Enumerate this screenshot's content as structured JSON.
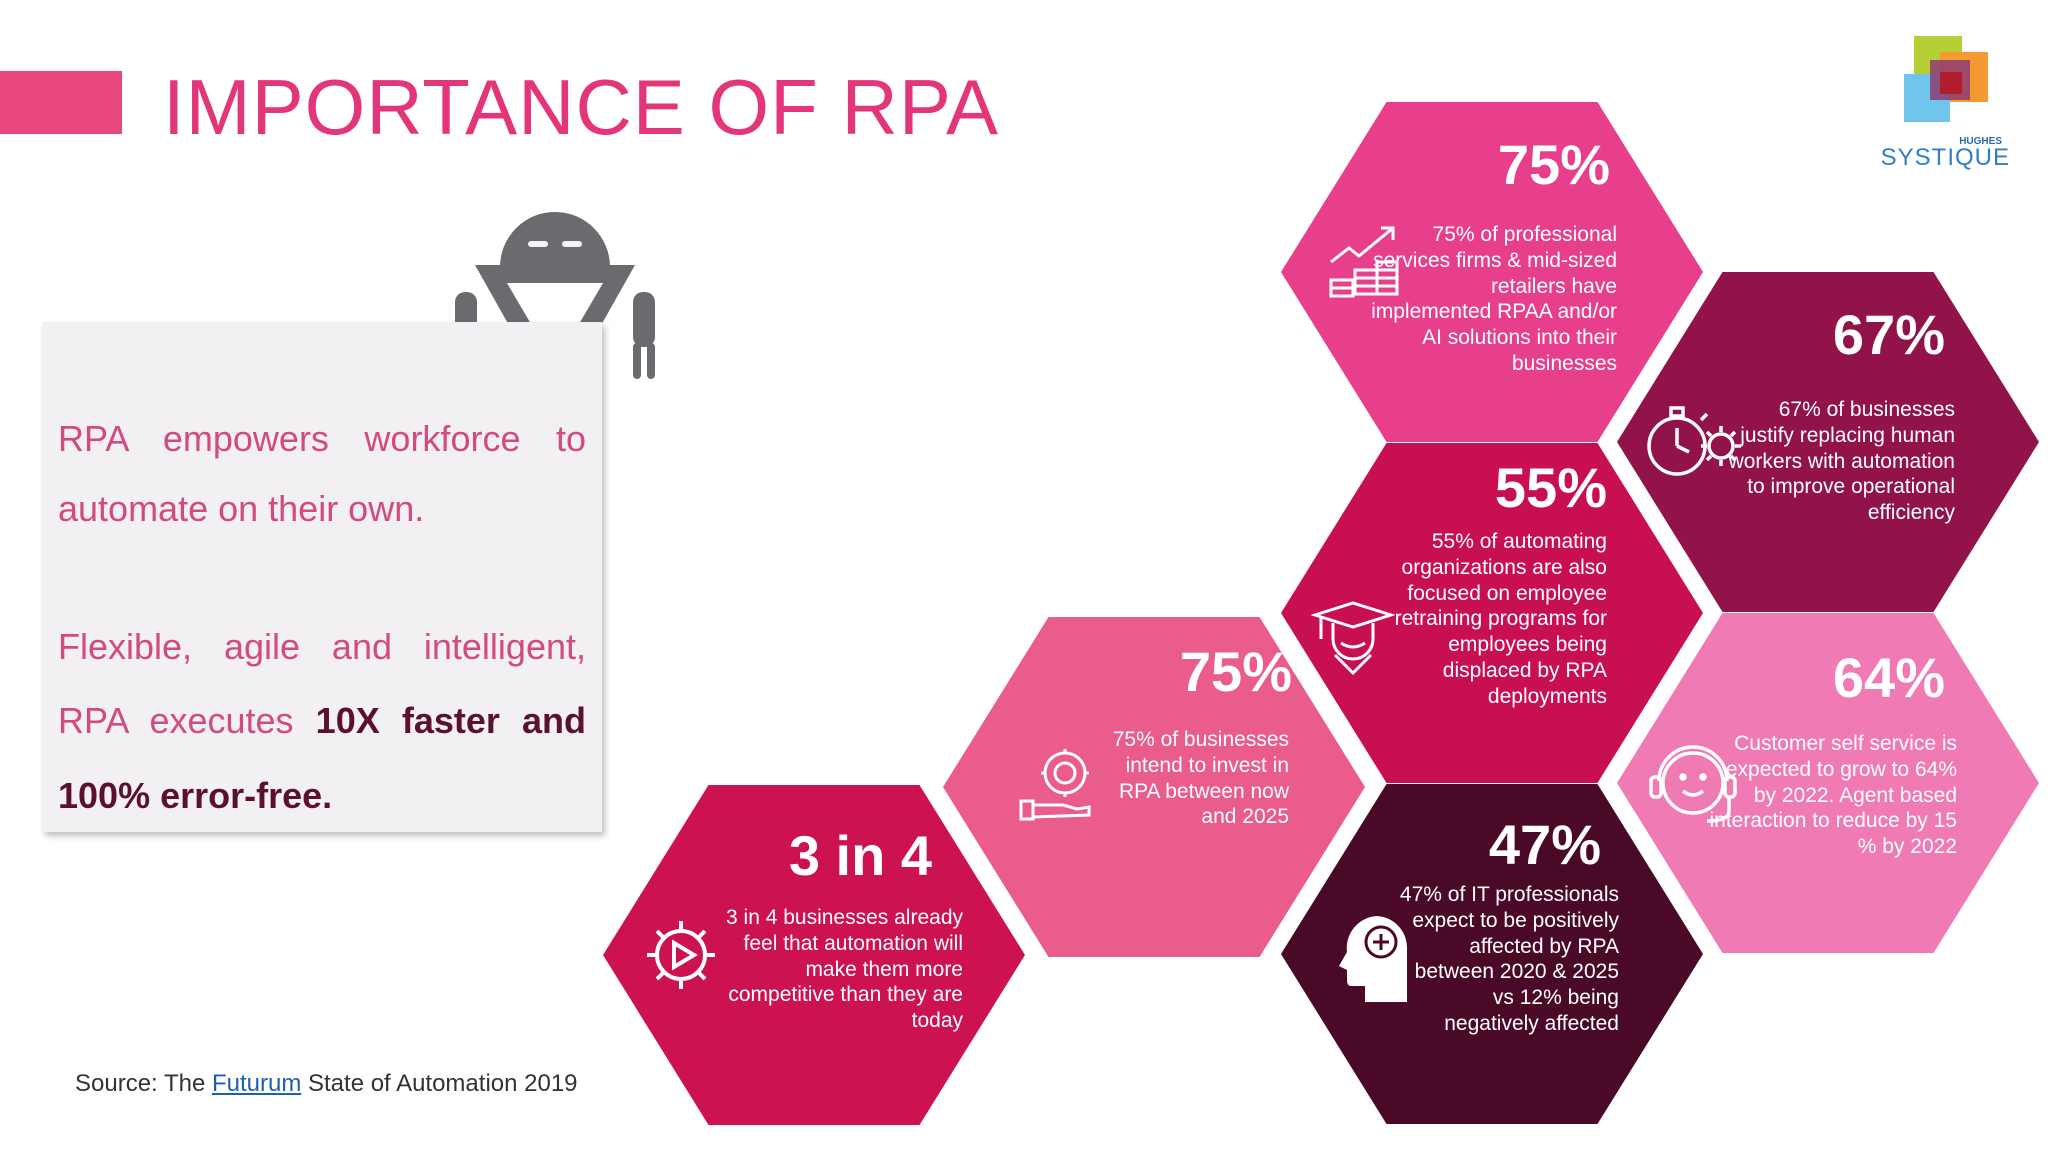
{
  "title": "IMPORTANCE OF RPA",
  "logo": {
    "small": "HUGHES",
    "word": "SYSTIQUE"
  },
  "textbox": {
    "l1": "RPA empowers workforce to",
    "l2": "automate on their own.",
    "l3": "Flexible, agile and intelligent,",
    "l4a": "RPA executes ",
    "l4b": "10X faster and",
    "l5": "100% error-free."
  },
  "source": {
    "prefix": "Source: The ",
    "link": "Futurum",
    "suffix": " State of Automation 2019"
  },
  "hexagons": [
    {
      "pct": "75%",
      "desc": "75% of professional services firms & mid-sized retailers have implemented RPAA and/or AI solutions into their businesses",
      "icon": "growth-chart-coins-icon",
      "color": "#e83f8c"
    },
    {
      "pct": "67%",
      "desc": "67% of businesses justify replacing human workers with automation to improve operational efficiency",
      "icon": "stopwatch-gear-icon",
      "color": "#92134a"
    },
    {
      "pct": "55%",
      "desc": "55% of automating organizations are also focused on employee retraining programs for employees being displaced by RPA deployments",
      "icon": "graduate-cap-icon",
      "color": "#c90f53"
    },
    {
      "pct": "75%",
      "desc": "75% of businesses intend to invest in RPA between now and 2025",
      "icon": "hand-gear-icon",
      "color": "#ea5c8c"
    },
    {
      "pct": "64%",
      "desc": "Customer self service is expected to grow to 64% by 2022. Agent based interaction to reduce by 15 % by 2022",
      "icon": "headset-agent-icon",
      "color": "#f07ab3"
    },
    {
      "pct": "47%",
      "desc": "47% of IT professionals expect to be positively affected by RPA between 2020 & 2025 vs 12% being negatively affected",
      "icon": "head-plus-icon",
      "color": "#4a0a27"
    },
    {
      "pct": "3 in 4",
      "desc": "3 in 4 businesses already feel that automation will make them more competitive than they are today",
      "icon": "gear-play-icon",
      "color": "#cc1250"
    }
  ]
}
